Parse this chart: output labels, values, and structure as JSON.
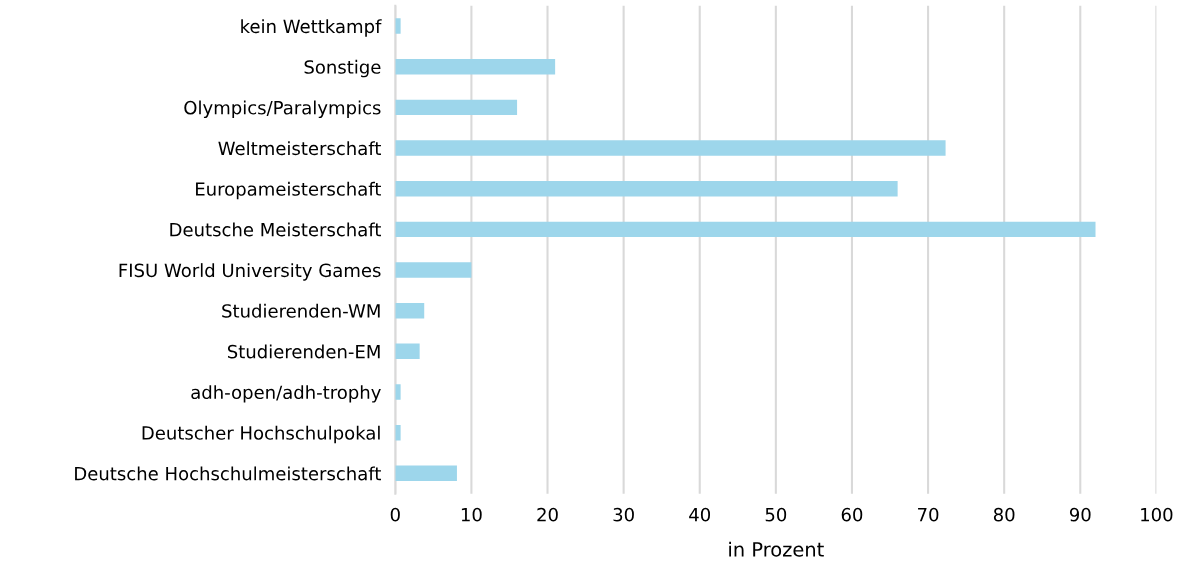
{
  "chart_data": {
    "type": "bar",
    "orientation": "horizontal",
    "xlabel": "in Prozent",
    "categories": [
      "kein Wettkampf",
      "Sonstige",
      "Olympics/Paralympics",
      "Weltmeisterschaft",
      "Europameisterschaft",
      "Deutsche Meisterschaft",
      "FISU World University Games",
      "Studierenden-WM",
      "Studierenden-EM",
      "adh-open/adh-trophy",
      "Deutscher Hochschulpokal",
      "Deutsche Hochschulmeisterschaft"
    ],
    "values": [
      0.7,
      21,
      16,
      72.3,
      66,
      92,
      10,
      3.8,
      3.2,
      0.7,
      0.7,
      8.1
    ],
    "color": "#9dd6eb",
    "xlim": [
      0,
      100
    ],
    "xticks": [
      0,
      10,
      20,
      30,
      40,
      50,
      60,
      70,
      80,
      90,
      100
    ],
    "grid": "x"
  }
}
